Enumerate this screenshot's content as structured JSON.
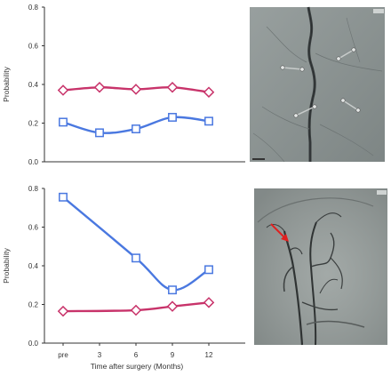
{
  "chart_data": [
    {
      "type": "line",
      "title": "",
      "xlabel": "",
      "ylabel": "Probability",
      "ylim": [
        0,
        0.8
      ],
      "yticks": [
        "0.0",
        "0.2",
        "0.4",
        "0.6",
        "0.8"
      ],
      "x": [
        0,
        3,
        6,
        9,
        12
      ],
      "series": [
        {
          "color": "#c8336a",
          "marker": "diamond",
          "values": [
            0.37,
            0.385,
            0.375,
            0.385,
            0.36
          ]
        },
        {
          "color": "#4a78e0",
          "marker": "square",
          "values": [
            0.205,
            0.15,
            0.17,
            0.23,
            0.21
          ]
        }
      ],
      "grid": false
    },
    {
      "type": "line",
      "title": "",
      "xlabel": "Time after surgery (Months)",
      "ylabel": "Probability",
      "ylim": [
        0,
        0.8
      ],
      "yticks": [
        "0.0",
        "0.2",
        "0.4",
        "0.6",
        "0.8"
      ],
      "categories": [
        "pre",
        "3",
        "6",
        "9",
        "12"
      ],
      "x": [
        0,
        3,
        6,
        9,
        12
      ],
      "series": [
        {
          "color": "#4a78e0",
          "marker": "square",
          "values": [
            0.755,
            null,
            0.44,
            0.275,
            0.38
          ]
        },
        {
          "color": "#c8336a",
          "marker": "diamond",
          "values": [
            0.165,
            null,
            0.17,
            0.19,
            0.21
          ]
        }
      ],
      "grid": false
    }
  ],
  "images": [
    {
      "semantic": "angiogram-image-top"
    },
    {
      "semantic": "angiogram-image-bottom",
      "annotation": "red-arrow"
    }
  ]
}
